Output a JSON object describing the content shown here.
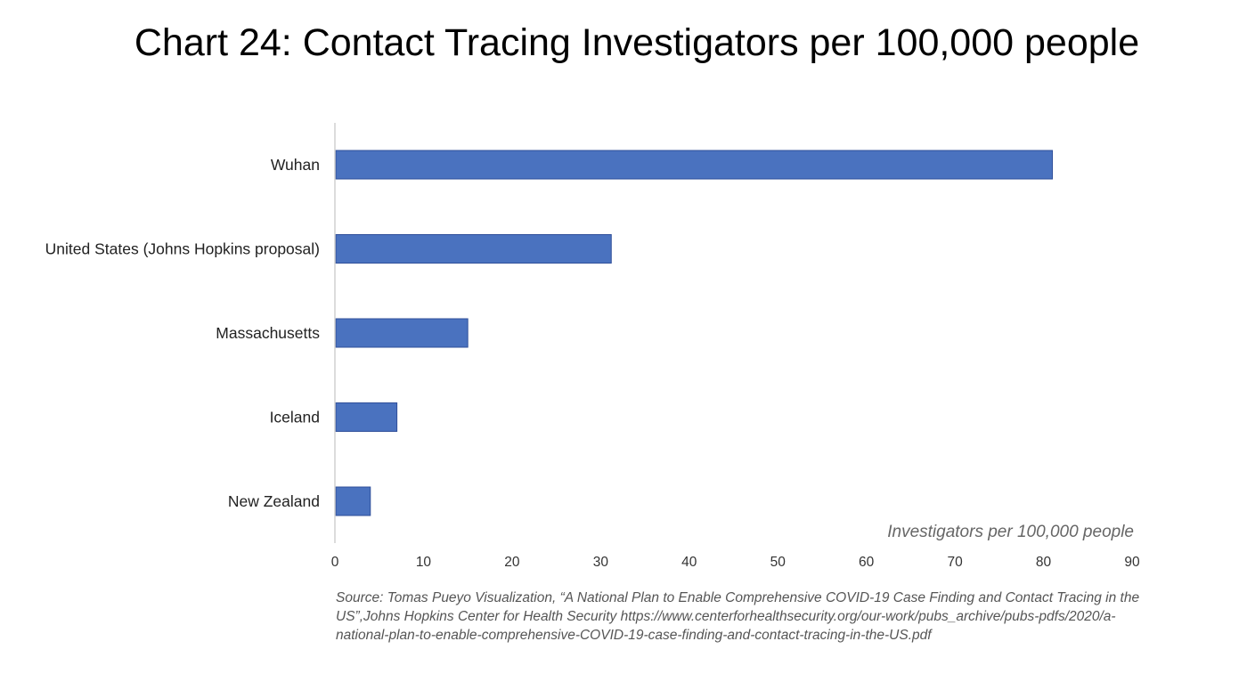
{
  "chart_data": {
    "type": "bar",
    "orientation": "horizontal",
    "title": "Chart 24: Contact Tracing Investigators per 100,000 people",
    "xlabel": "Investigators per 100,000 people",
    "ylabel": "",
    "categories": [
      "Wuhan",
      "United States (Johns Hopkins proposal)",
      "Massachusetts",
      "Iceland",
      "New Zealand"
    ],
    "values": [
      81,
      31.2,
      15,
      7,
      4
    ],
    "xlim": [
      0,
      90
    ],
    "xticks": [
      "0",
      "10",
      "20",
      "30",
      "40",
      "50",
      "60",
      "70",
      "80",
      "90"
    ],
    "grid": false,
    "legend": "none",
    "bar_color": "#4a72bf",
    "bar_edge_color": "#2f4f9a"
  },
  "source": "Source: Tomas Pueyo Visualization, “A National Plan to Enable Comprehensive COVID-19 Case Finding and Contact Tracing in the US”,Johns Hopkins Center for Health Security https://www.centerforhealthsecurity.org/our-work/pubs_archive/pubs-pdfs/2020/a-national-plan-to-enable-comprehensive-COVID-19-case-finding-and-contact-tracing-in-the-US.pdf"
}
